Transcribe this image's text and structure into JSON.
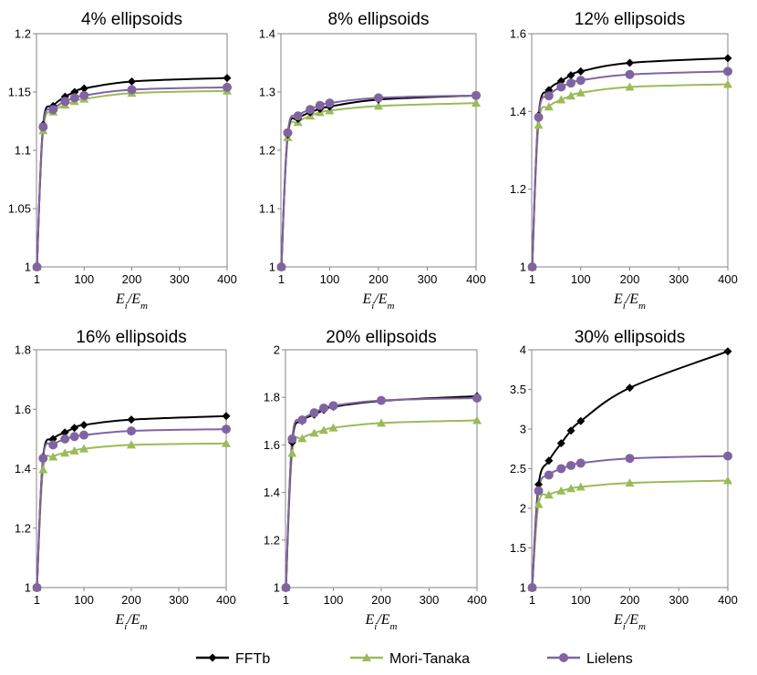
{
  "colors": {
    "FFTb": "#000000",
    "Mori-Tanaka": "#9bbb59",
    "Lielens": "#8064a2",
    "axis": "#868686"
  },
  "legend": [
    {
      "name": "FFTb",
      "marker": "diamond"
    },
    {
      "name": "Mori-Tanaka",
      "marker": "triangle"
    },
    {
      "name": "Lielens",
      "marker": "circle"
    }
  ],
  "chart_data": [
    {
      "type": "line",
      "title": "4% ellipsoids",
      "xlabel": "Ei/Em",
      "x": [
        1,
        14,
        35,
        60,
        80,
        100,
        200,
        400
      ],
      "xlim": [
        0,
        400
      ],
      "xticks": [
        1,
        100,
        200,
        300,
        400
      ],
      "ylim": [
        1,
        1.2
      ],
      "yticks": [
        "1",
        "1.05",
        "1.1",
        "1.15",
        "1.2"
      ],
      "series": [
        {
          "name": "FFTb",
          "values": [
            1,
            1.122,
            1.138,
            1.146,
            1.15,
            1.153,
            1.159,
            1.162
          ]
        },
        {
          "name": "Mori-Tanaka",
          "values": [
            1,
            1.117,
            1.133,
            1.139,
            1.142,
            1.144,
            1.149,
            1.151
          ]
        },
        {
          "name": "Lielens",
          "values": [
            1,
            1.12,
            1.135,
            1.142,
            1.145,
            1.147,
            1.152,
            1.154
          ]
        }
      ]
    },
    {
      "type": "line",
      "title": "8% ellipsoids",
      "xlabel": "Ei/Em",
      "x": [
        1,
        14,
        35,
        60,
        80,
        100,
        200,
        400
      ],
      "xlim": [
        0,
        400
      ],
      "xticks": [
        1,
        100,
        200,
        300,
        400
      ],
      "ylim": [
        1,
        1.4
      ],
      "yticks": [
        "1",
        "1.1",
        "1.2",
        "1.3",
        "1.4"
      ],
      "series": [
        {
          "name": "FFTb",
          "values": [
            1,
            1.227,
            1.254,
            1.265,
            1.271,
            1.275,
            1.287,
            1.294
          ]
        },
        {
          "name": "Mori-Tanaka",
          "values": [
            1,
            1.222,
            1.248,
            1.259,
            1.265,
            1.268,
            1.276,
            1.281
          ]
        },
        {
          "name": "Lielens",
          "values": [
            1,
            1.23,
            1.259,
            1.27,
            1.277,
            1.281,
            1.29,
            1.294
          ]
        }
      ]
    },
    {
      "type": "line",
      "title": "12% ellipsoids",
      "xlabel": "Ei/Em",
      "x": [
        1,
        14,
        35,
        60,
        80,
        100,
        200,
        400
      ],
      "xlim": [
        0,
        400
      ],
      "xticks": [
        1,
        100,
        200,
        300,
        400
      ],
      "ylim": [
        1,
        1.6
      ],
      "yticks": [
        "1",
        "1.2",
        "1.4",
        "1.6"
      ],
      "series": [
        {
          "name": "FFTb",
          "values": [
            1,
            1.39,
            1.455,
            1.478,
            1.493,
            1.503,
            1.525,
            1.537
          ]
        },
        {
          "name": "Mori-Tanaka",
          "values": [
            1,
            1.365,
            1.412,
            1.43,
            1.44,
            1.448,
            1.463,
            1.47
          ]
        },
        {
          "name": "Lielens",
          "values": [
            1,
            1.385,
            1.44,
            1.463,
            1.473,
            1.48,
            1.495,
            1.503
          ]
        }
      ]
    },
    {
      "type": "line",
      "title": "16% ellipsoids",
      "xlabel": "Ei/Em",
      "x": [
        1,
        14,
        35,
        60,
        80,
        100,
        200,
        400
      ],
      "xlim": [
        0,
        400
      ],
      "xticks": [
        1,
        100,
        200,
        300,
        400
      ],
      "ylim": [
        1,
        1.8
      ],
      "yticks": [
        "1",
        "1.2",
        "1.4",
        "1.6",
        "1.8"
      ],
      "series": [
        {
          "name": "FFTb",
          "values": [
            1,
            1.44,
            1.5,
            1.522,
            1.537,
            1.547,
            1.565,
            1.577
          ]
        },
        {
          "name": "Mori-Tanaka",
          "values": [
            1,
            1.397,
            1.44,
            1.453,
            1.46,
            1.467,
            1.48,
            1.485
          ]
        },
        {
          "name": "Lielens",
          "values": [
            1,
            1.435,
            1.48,
            1.5,
            1.508,
            1.513,
            1.527,
            1.533
          ]
        }
      ]
    },
    {
      "type": "line",
      "title": "20% ellipsoids",
      "xlabel": "Ei/Em",
      "x": [
        1,
        14,
        35,
        60,
        80,
        100,
        200,
        400
      ],
      "xlim": [
        0,
        400
      ],
      "xticks": [
        1,
        100,
        200,
        300,
        400
      ],
      "ylim": [
        1,
        2
      ],
      "yticks": [
        "1",
        "1.2",
        "1.4",
        "1.6",
        "1.8",
        "2"
      ],
      "series": [
        {
          "name": "FFTb",
          "values": [
            1,
            1.61,
            1.7,
            1.727,
            1.747,
            1.76,
            1.785,
            1.805
          ]
        },
        {
          "name": "Mori-Tanaka",
          "values": [
            1,
            1.565,
            1.627,
            1.65,
            1.662,
            1.672,
            1.692,
            1.703
          ]
        },
        {
          "name": "Lielens",
          "values": [
            1,
            1.625,
            1.705,
            1.735,
            1.755,
            1.765,
            1.787,
            1.797
          ]
        }
      ]
    },
    {
      "type": "line",
      "title": "30% ellipsoids",
      "xlabel": "Ei/Em",
      "x": [
        1,
        14,
        35,
        60,
        80,
        100,
        200,
        400
      ],
      "xlim": [
        0,
        400
      ],
      "xticks": [
        1,
        100,
        200,
        300,
        400
      ],
      "ylim": [
        1,
        4
      ],
      "yticks": [
        "1",
        "1.5",
        "2",
        "2.5",
        "3",
        "3.5",
        "4"
      ],
      "series": [
        {
          "name": "FFTb",
          "values": [
            1,
            2.3,
            2.6,
            2.82,
            2.98,
            3.1,
            3.52,
            3.98
          ]
        },
        {
          "name": "Mori-Tanaka",
          "values": [
            1,
            2.05,
            2.17,
            2.22,
            2.25,
            2.27,
            2.32,
            2.35
          ]
        },
        {
          "name": "Lielens",
          "values": [
            1,
            2.22,
            2.42,
            2.5,
            2.54,
            2.57,
            2.63,
            2.66
          ]
        }
      ]
    }
  ]
}
